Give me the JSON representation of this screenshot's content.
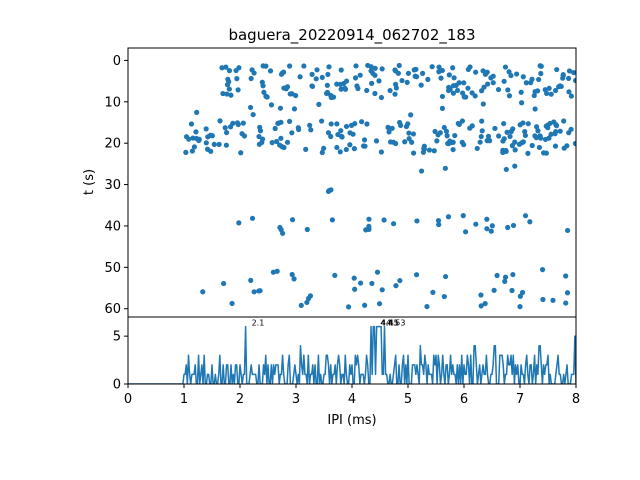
{
  "chart_data": [
    {
      "type": "scatter",
      "title": "baguera_20220914_062702_183",
      "xlabel": "",
      "ylabel": "t (s)",
      "xlim": [
        0,
        8
      ],
      "ylim": [
        62,
        -3
      ],
      "y_inverted": true,
      "xticks": [
        0,
        1,
        2,
        3,
        4,
        5,
        6,
        7,
        8
      ],
      "yticks": [
        0,
        10,
        20,
        30,
        40,
        50,
        60
      ],
      "ytick_labels": [
        "0",
        "10",
        "20",
        "30",
        "40",
        "50",
        "60"
      ],
      "marker_color": "#1f77b4",
      "clusters": [
        {
          "t_min": 1.2,
          "t_max": 9.0,
          "ipi_min": 1.6,
          "ipi_max": 8.0,
          "count": 170
        },
        {
          "t_min": 10.2,
          "t_max": 13.5,
          "ipi_min": 1.2,
          "ipi_max": 8.0,
          "count": 12
        },
        {
          "t_min": 14.6,
          "t_max": 22.5,
          "ipi_min": 1.0,
          "ipi_max": 8.0,
          "count": 190
        },
        {
          "t_min": 25.0,
          "t_max": 26.8,
          "ipi_min": 4.0,
          "ipi_max": 7.4,
          "count": 4
        },
        {
          "t_min": 30.5,
          "t_max": 32.0,
          "ipi_min": 3.4,
          "ipi_max": 4.6,
          "count": 3
        },
        {
          "t_min": 37.5,
          "t_max": 42.0,
          "ipi_min": 1.8,
          "ipi_max": 8.0,
          "count": 30
        },
        {
          "t_min": 50.5,
          "t_max": 59.6,
          "ipi_min": 1.2,
          "ipi_max": 8.0,
          "count": 50
        }
      ]
    },
    {
      "type": "line",
      "title": "",
      "xlabel": "IPI (ms)",
      "ylabel": "",
      "xlim": [
        0,
        8
      ],
      "ylim": [
        0,
        7
      ],
      "xticks": [
        0,
        1,
        2,
        3,
        4,
        5,
        6,
        7,
        8
      ],
      "xtick_labels": [
        "0",
        "1",
        "2",
        "3",
        "4",
        "5",
        "6",
        "7",
        "8"
      ],
      "yticks": [
        0,
        5
      ],
      "ytick_labels": [
        "0",
        "5"
      ],
      "line_color": "#1f77b4",
      "annotations": [
        {
          "x": 2.1,
          "y": 6,
          "text": "2.1"
        },
        {
          "x": 4.4,
          "y": 6,
          "text": "4.4"
        },
        {
          "x": 4.41,
          "y": 6,
          "text": "4.41"
        },
        {
          "x": 4.5,
          "y": 6,
          "text": "4.5"
        },
        {
          "x": 4.53,
          "y": 6,
          "text": "4.53"
        }
      ],
      "peaks": [
        {
          "x": 2.1,
          "y": 6
        },
        {
          "x": 4.4,
          "y": 6
        },
        {
          "x": 4.5,
          "y": 6
        },
        {
          "x": 3.08,
          "y": 4
        },
        {
          "x": 3.55,
          "y": 3
        },
        {
          "x": 5.22,
          "y": 4
        },
        {
          "x": 5.5,
          "y": 3
        },
        {
          "x": 6.19,
          "y": 4
        },
        {
          "x": 6.55,
          "y": 4
        },
        {
          "x": 7.35,
          "y": 4
        },
        {
          "x": 7.98,
          "y": 5
        }
      ],
      "baseline_until": 1.0
    }
  ]
}
